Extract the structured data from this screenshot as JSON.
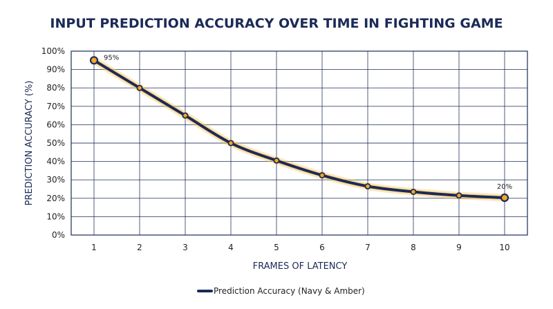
{
  "chart_data": {
    "type": "line",
    "title": "INPUT PREDICTION ACCURACY OVER TIME IN FIGHTING GAME",
    "xlabel": "FRAMES OF LATENCY",
    "ylabel": "PREDICTION ACCURACY (%)",
    "x": [
      1,
      2,
      3,
      4,
      5,
      6,
      7,
      8,
      9,
      10
    ],
    "x_tick_labels": [
      "1",
      "2",
      "3",
      "4",
      "5",
      "6",
      "7",
      "8",
      "9",
      "10"
    ],
    "y_tick_labels": [
      "0%",
      "10%",
      "20%",
      "30%",
      "40%",
      "50%",
      "60%",
      "70%",
      "80%",
      "90%",
      "100%"
    ],
    "ylim": [
      0,
      100
    ],
    "xlim": [
      0.5,
      10.5
    ],
    "grid": true,
    "legend_position": "bottom-center",
    "series": [
      {
        "name": "Prediction Accuracy (Navy & Amber)",
        "values": [
          95,
          80,
          65,
          50,
          40.5,
          32.5,
          26.5,
          23.5,
          21.5,
          20.3
        ],
        "color": "#1b2a57",
        "marker_color": "#f5a623",
        "glow_color": "#f7c35a"
      }
    ],
    "annotations": [
      {
        "text": "95%",
        "x": 1,
        "y": 95
      },
      {
        "text": "20%",
        "x": 10,
        "y": 20.3
      }
    ]
  }
}
